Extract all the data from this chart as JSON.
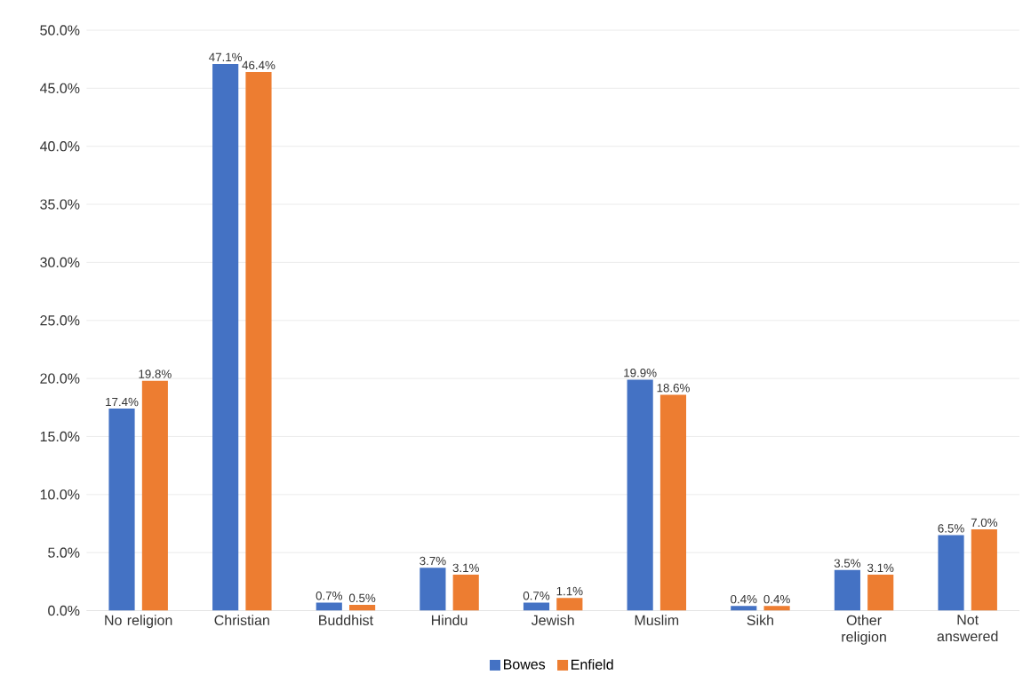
{
  "chart_data": {
    "type": "bar",
    "categories": [
      "No religion",
      "Christian",
      "Buddhist",
      "Hindu",
      "Jewish",
      "Muslim",
      "Sikh",
      "Other religion",
      "Not answered"
    ],
    "series": [
      {
        "name": "Bowes",
        "color": "#4472c4",
        "values": [
          17.4,
          47.1,
          0.7,
          3.7,
          0.7,
          19.9,
          0.4,
          3.5,
          6.5
        ],
        "value_labels": [
          "17.4%",
          "47.1%",
          "0.7%",
          "3.7%",
          "0.7%",
          "19.9%",
          "0.4%",
          "3.5%",
          "6.5%"
        ]
      },
      {
        "name": "Enfield",
        "color": "#ed7d31",
        "values": [
          19.8,
          46.4,
          0.5,
          3.1,
          1.1,
          18.6,
          0.4,
          3.1,
          7.0
        ],
        "value_labels": [
          "19.8%",
          "46.4%",
          "0.5%",
          "3.1%",
          "1.1%",
          "18.6%",
          "0.4%",
          "3.1%",
          "7.0%"
        ]
      }
    ],
    "ylim": [
      0,
      50
    ],
    "yticks": [
      {
        "value": 0,
        "label": "0.0%"
      },
      {
        "value": 5,
        "label": "5.0%"
      },
      {
        "value": 10,
        "label": "10.0%"
      },
      {
        "value": 15,
        "label": "15.0%"
      },
      {
        "value": 20,
        "label": "20.0%"
      },
      {
        "value": 25,
        "label": "25.0%"
      },
      {
        "value": 30,
        "label": "30.0%"
      },
      {
        "value": 35,
        "label": "35.0%"
      },
      {
        "value": 40,
        "label": "40.0%"
      },
      {
        "value": 45,
        "label": "45.0%"
      },
      {
        "value": 50,
        "label": "50.0%"
      }
    ],
    "grid": "y",
    "legend": "bottom"
  }
}
